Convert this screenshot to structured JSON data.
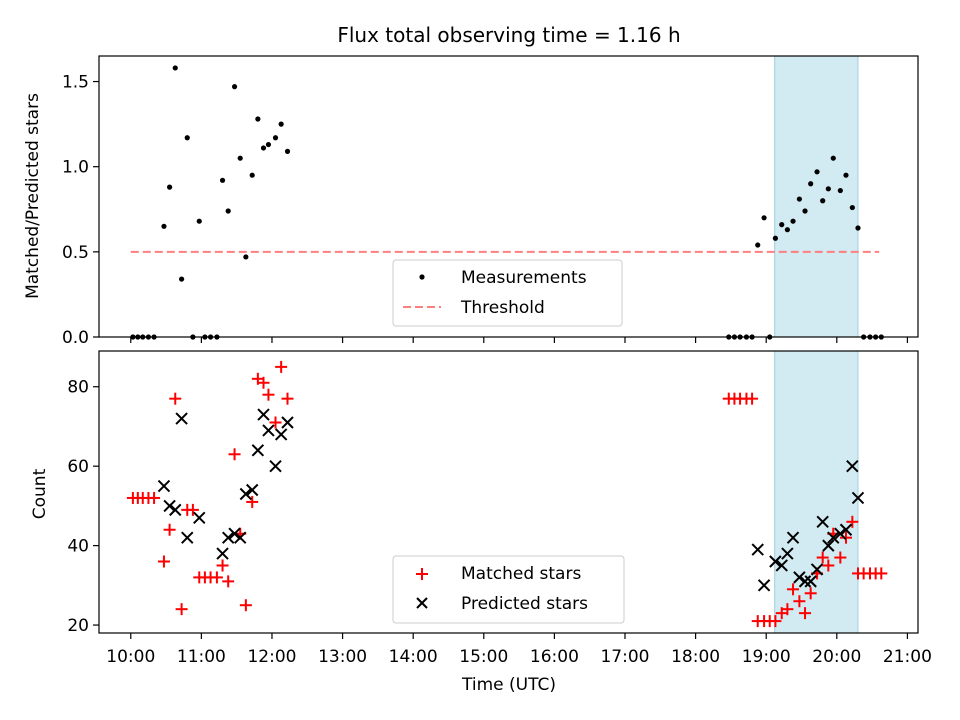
{
  "title": "Flux total observing time = 1.16 h",
  "colors": {
    "measurement": "#000000",
    "threshold": "#ff7f7f",
    "matched": "#ff0000",
    "predicted": "#000000",
    "highlight_fill": "#add8e6",
    "highlight_edge": "#9fcfde"
  },
  "chart_data": [
    {
      "type": "scatter",
      "panel": "top",
      "xlabel": "",
      "ylabel": "Matched/Predicted stars",
      "ylim": [
        0,
        1.65
      ],
      "yticks": [
        0.0,
        0.5,
        1.0,
        1.5
      ],
      "ytick_labels": [
        "0.0",
        "0.5",
        "1.0",
        "1.5"
      ],
      "xlim": [
        9.55,
        21.15
      ],
      "grid": false,
      "legend_position": "bottom-center",
      "highlight_span": [
        19.12,
        20.3
      ],
      "threshold": {
        "name": "Threshold",
        "x": [
          10.0,
          20.6
        ],
        "y": 0.5
      },
      "series": [
        {
          "name": "Measurements",
          "marker": "dot",
          "points": [
            [
              10.03,
              0
            ],
            [
              10.1,
              0
            ],
            [
              10.17,
              0
            ],
            [
              10.25,
              0
            ],
            [
              10.33,
              0
            ],
            [
              10.47,
              0.65
            ],
            [
              10.55,
              0.88
            ],
            [
              10.63,
              1.58
            ],
            [
              10.72,
              0.34
            ],
            [
              10.8,
              1.17
            ],
            [
              10.88,
              0
            ],
            [
              10.97,
              0.68
            ],
            [
              11.05,
              0
            ],
            [
              11.13,
              0
            ],
            [
              11.22,
              0
            ],
            [
              11.3,
              0.92
            ],
            [
              11.38,
              0.74
            ],
            [
              11.47,
              1.47
            ],
            [
              11.55,
              1.05
            ],
            [
              11.63,
              0.47
            ],
            [
              11.72,
              0.95
            ],
            [
              11.8,
              1.28
            ],
            [
              11.88,
              1.11
            ],
            [
              11.95,
              1.13
            ],
            [
              12.05,
              1.17
            ],
            [
              12.13,
              1.25
            ],
            [
              12.22,
              1.09
            ],
            [
              18.47,
              0
            ],
            [
              18.55,
              0
            ],
            [
              18.63,
              0
            ],
            [
              18.72,
              0
            ],
            [
              18.8,
              0
            ],
            [
              18.88,
              0.54
            ],
            [
              18.97,
              0.7
            ],
            [
              19.05,
              0
            ],
            [
              19.13,
              0.58
            ],
            [
              19.22,
              0.66
            ],
            [
              19.3,
              0.63
            ],
            [
              19.38,
              0.68
            ],
            [
              19.47,
              0.81
            ],
            [
              19.55,
              0.74
            ],
            [
              19.63,
              0.9
            ],
            [
              19.72,
              0.97
            ],
            [
              19.8,
              0.8
            ],
            [
              19.88,
              0.87
            ],
            [
              19.95,
              1.05
            ],
            [
              20.05,
              0.86
            ],
            [
              20.13,
              0.95
            ],
            [
              20.22,
              0.76
            ],
            [
              20.3,
              0.64
            ],
            [
              20.38,
              0
            ],
            [
              20.47,
              0
            ],
            [
              20.55,
              0
            ],
            [
              20.63,
              0
            ]
          ]
        }
      ]
    },
    {
      "type": "scatter",
      "panel": "bottom",
      "xlabel": "Time (UTC)",
      "ylabel": "Count",
      "ylim": [
        18,
        89
      ],
      "yticks": [
        20,
        40,
        60,
        80
      ],
      "ytick_labels": [
        "20",
        "40",
        "60",
        "80"
      ],
      "xlim": [
        9.55,
        21.15
      ],
      "xticks": [
        10,
        11,
        12,
        13,
        14,
        15,
        16,
        17,
        18,
        19,
        20,
        21
      ],
      "xtick_labels": [
        "10:00",
        "11:00",
        "12:00",
        "13:00",
        "14:00",
        "15:00",
        "16:00",
        "17:00",
        "18:00",
        "19:00",
        "20:00",
        "21:00"
      ],
      "grid": false,
      "legend_position": "bottom-center",
      "highlight_span": [
        19.12,
        20.3
      ],
      "series": [
        {
          "name": "Matched stars",
          "marker": "plus",
          "points": [
            [
              10.03,
              52
            ],
            [
              10.1,
              52
            ],
            [
              10.17,
              52
            ],
            [
              10.25,
              52
            ],
            [
              10.33,
              52
            ],
            [
              10.47,
              36
            ],
            [
              10.55,
              44
            ],
            [
              10.63,
              77
            ],
            [
              10.72,
              24
            ],
            [
              10.8,
              49
            ],
            [
              10.88,
              49
            ],
            [
              10.97,
              32
            ],
            [
              11.05,
              32
            ],
            [
              11.13,
              32
            ],
            [
              11.22,
              32
            ],
            [
              11.3,
              35
            ],
            [
              11.38,
              31
            ],
            [
              11.47,
              63
            ],
            [
              11.55,
              43
            ],
            [
              11.63,
              25
            ],
            [
              11.72,
              51
            ],
            [
              11.8,
              82
            ],
            [
              11.88,
              81
            ],
            [
              11.95,
              78
            ],
            [
              12.05,
              71
            ],
            [
              12.13,
              85
            ],
            [
              12.22,
              77
            ],
            [
              18.47,
              77
            ],
            [
              18.55,
              77
            ],
            [
              18.63,
              77
            ],
            [
              18.72,
              77
            ],
            [
              18.8,
              77
            ],
            [
              18.88,
              21
            ],
            [
              18.97,
              21
            ],
            [
              19.05,
              21
            ],
            [
              19.13,
              21
            ],
            [
              19.22,
              23
            ],
            [
              19.3,
              24
            ],
            [
              19.38,
              29
            ],
            [
              19.47,
              26
            ],
            [
              19.55,
              23
            ],
            [
              19.63,
              28
            ],
            [
              19.72,
              33
            ],
            [
              19.8,
              37
            ],
            [
              19.88,
              35
            ],
            [
              19.95,
              43
            ],
            [
              20.05,
              37
            ],
            [
              20.13,
              42
            ],
            [
              20.22,
              46
            ],
            [
              20.3,
              33
            ],
            [
              20.38,
              33
            ],
            [
              20.47,
              33
            ],
            [
              20.55,
              33
            ],
            [
              20.63,
              33
            ]
          ]
        },
        {
          "name": "Predicted stars",
          "marker": "x",
          "points": [
            [
              10.47,
              55
            ],
            [
              10.55,
              50
            ],
            [
              10.63,
              49
            ],
            [
              10.72,
              72
            ],
            [
              10.8,
              42
            ],
            [
              10.97,
              47
            ],
            [
              11.3,
              38
            ],
            [
              11.38,
              42
            ],
            [
              11.47,
              43
            ],
            [
              11.55,
              42
            ],
            [
              11.63,
              53
            ],
            [
              11.72,
              54
            ],
            [
              11.8,
              64
            ],
            [
              11.88,
              73
            ],
            [
              11.95,
              69
            ],
            [
              12.05,
              60
            ],
            [
              12.13,
              68
            ],
            [
              12.22,
              71
            ],
            [
              18.88,
              39
            ],
            [
              18.97,
              30
            ],
            [
              19.13,
              36
            ],
            [
              19.22,
              35
            ],
            [
              19.3,
              38
            ],
            [
              19.38,
              42
            ],
            [
              19.47,
              32
            ],
            [
              19.55,
              31
            ],
            [
              19.63,
              31
            ],
            [
              19.72,
              34
            ],
            [
              19.8,
              46
            ],
            [
              19.88,
              40
            ],
            [
              19.95,
              42
            ],
            [
              20.05,
              43
            ],
            [
              20.13,
              44
            ],
            [
              20.22,
              60
            ],
            [
              20.3,
              52
            ]
          ]
        }
      ]
    }
  ]
}
